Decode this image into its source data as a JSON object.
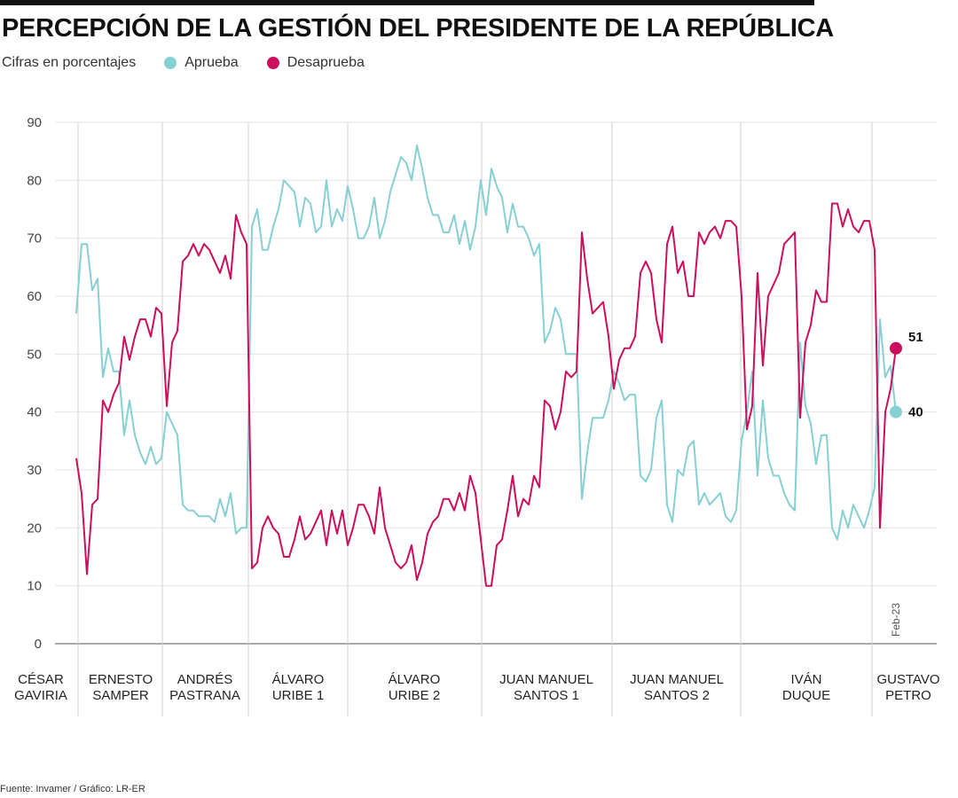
{
  "header": {
    "title": "PERCEPCIÓN DE LA GESTIÓN DEL PRESIDENTE DE LA REPÚBLICA",
    "subtitle": "Cifras en porcentajes"
  },
  "footer": {
    "source": "Fuente: Invamer / Gráfico: LR-ER"
  },
  "chart_data": {
    "type": "line",
    "title": "PERCEPCIÓN DE LA GESTIÓN DEL PRESIDENTE DE LA REPÚBLICA",
    "xlabel": "",
    "ylabel": "",
    "ylim": [
      0,
      90
    ],
    "yticks": [
      0,
      10,
      20,
      30,
      40,
      50,
      60,
      70,
      80,
      90
    ],
    "grid": true,
    "legend_position": "top-left",
    "x_marker": "Feb-23",
    "periods": [
      [
        "CÉSAR",
        "GAVIRIA"
      ],
      [
        "ERNESTO",
        "SAMPER"
      ],
      [
        "ANDRÉS",
        "PASTRANA"
      ],
      [
        "ÁLVARO",
        "URIBE 1"
      ],
      [
        "ÁLVARO",
        "URIBE 2"
      ],
      [
        "JUAN MANUEL",
        "SANTOS 1"
      ],
      [
        "JUAN MANUEL",
        "SANTOS 2"
      ],
      [
        "IVÁN",
        "DUQUE"
      ],
      [
        "GUSTAVO",
        "PETRO"
      ]
    ],
    "series": [
      {
        "name": "Aprueba",
        "color": "#86cfd3",
        "values": [
          57,
          69,
          69,
          61,
          63,
          46,
          51,
          47,
          47,
          36,
          42,
          36,
          33,
          31,
          34,
          31,
          32,
          40,
          38,
          36,
          24,
          23,
          23,
          22,
          22,
          22,
          21,
          25,
          22,
          26,
          19,
          20,
          20,
          72,
          75,
          68,
          68,
          72,
          75,
          80,
          79,
          78,
          72,
          77,
          76,
          71,
          72,
          80,
          72,
          75,
          73,
          79,
          75,
          70,
          70,
          72,
          77,
          70,
          73,
          78,
          81,
          84,
          83,
          80,
          86,
          82,
          77,
          74,
          74,
          71,
          71,
          74,
          69,
          73,
          68,
          72,
          80,
          74,
          82,
          79,
          77,
          71,
          76,
          72,
          72,
          70,
          67,
          69,
          52,
          54,
          58,
          56,
          50,
          50,
          50,
          25,
          33,
          39,
          39,
          39,
          42,
          47,
          45,
          42,
          43,
          43,
          29,
          28,
          30,
          39,
          42,
          24,
          21,
          30,
          29,
          34,
          35,
          24,
          26,
          24,
          25,
          26,
          22,
          21,
          23,
          35,
          40,
          47,
          29,
          42,
          32,
          29,
          29,
          26,
          24,
          23,
          52,
          41,
          38,
          31,
          36,
          36,
          20,
          18,
          23,
          20,
          24,
          22,
          20,
          23,
          27,
          56,
          46,
          48,
          40
        ],
        "last_label": "40"
      },
      {
        "name": "Desaprueba",
        "color": "#cc0e5c",
        "values": [
          32,
          26,
          12,
          24,
          25,
          42,
          40,
          43,
          45,
          53,
          49,
          53,
          56,
          56,
          53,
          58,
          57,
          41,
          52,
          54,
          66,
          67,
          69,
          67,
          69,
          68,
          66,
          64,
          67,
          63,
          74,
          71,
          69,
          13,
          14,
          20,
          22,
          20,
          19,
          15,
          15,
          18,
          22,
          18,
          19,
          21,
          23,
          17,
          23,
          19,
          23,
          17,
          20,
          24,
          24,
          22,
          19,
          27,
          20,
          17,
          14,
          13,
          14,
          17,
          11,
          14,
          19,
          21,
          22,
          25,
          25,
          23,
          26,
          23,
          29,
          26,
          18,
          10,
          10,
          17,
          18,
          23,
          29,
          22,
          25,
          24,
          29,
          27,
          42,
          41,
          37,
          40,
          47,
          46,
          47,
          71,
          63,
          57,
          58,
          59,
          53,
          44,
          49,
          51,
          51,
          53,
          64,
          66,
          64,
          56,
          52,
          69,
          72,
          64,
          66,
          60,
          60,
          71,
          69,
          71,
          72,
          70,
          73,
          73,
          72,
          60,
          37,
          41,
          64,
          48,
          60,
          62,
          64,
          69,
          70,
          71,
          39,
          52,
          55,
          61,
          59,
          59,
          76,
          76,
          72,
          75,
          72,
          71,
          73,
          73,
          68,
          20,
          40,
          44,
          51
        ],
        "last_label": "51"
      }
    ]
  }
}
